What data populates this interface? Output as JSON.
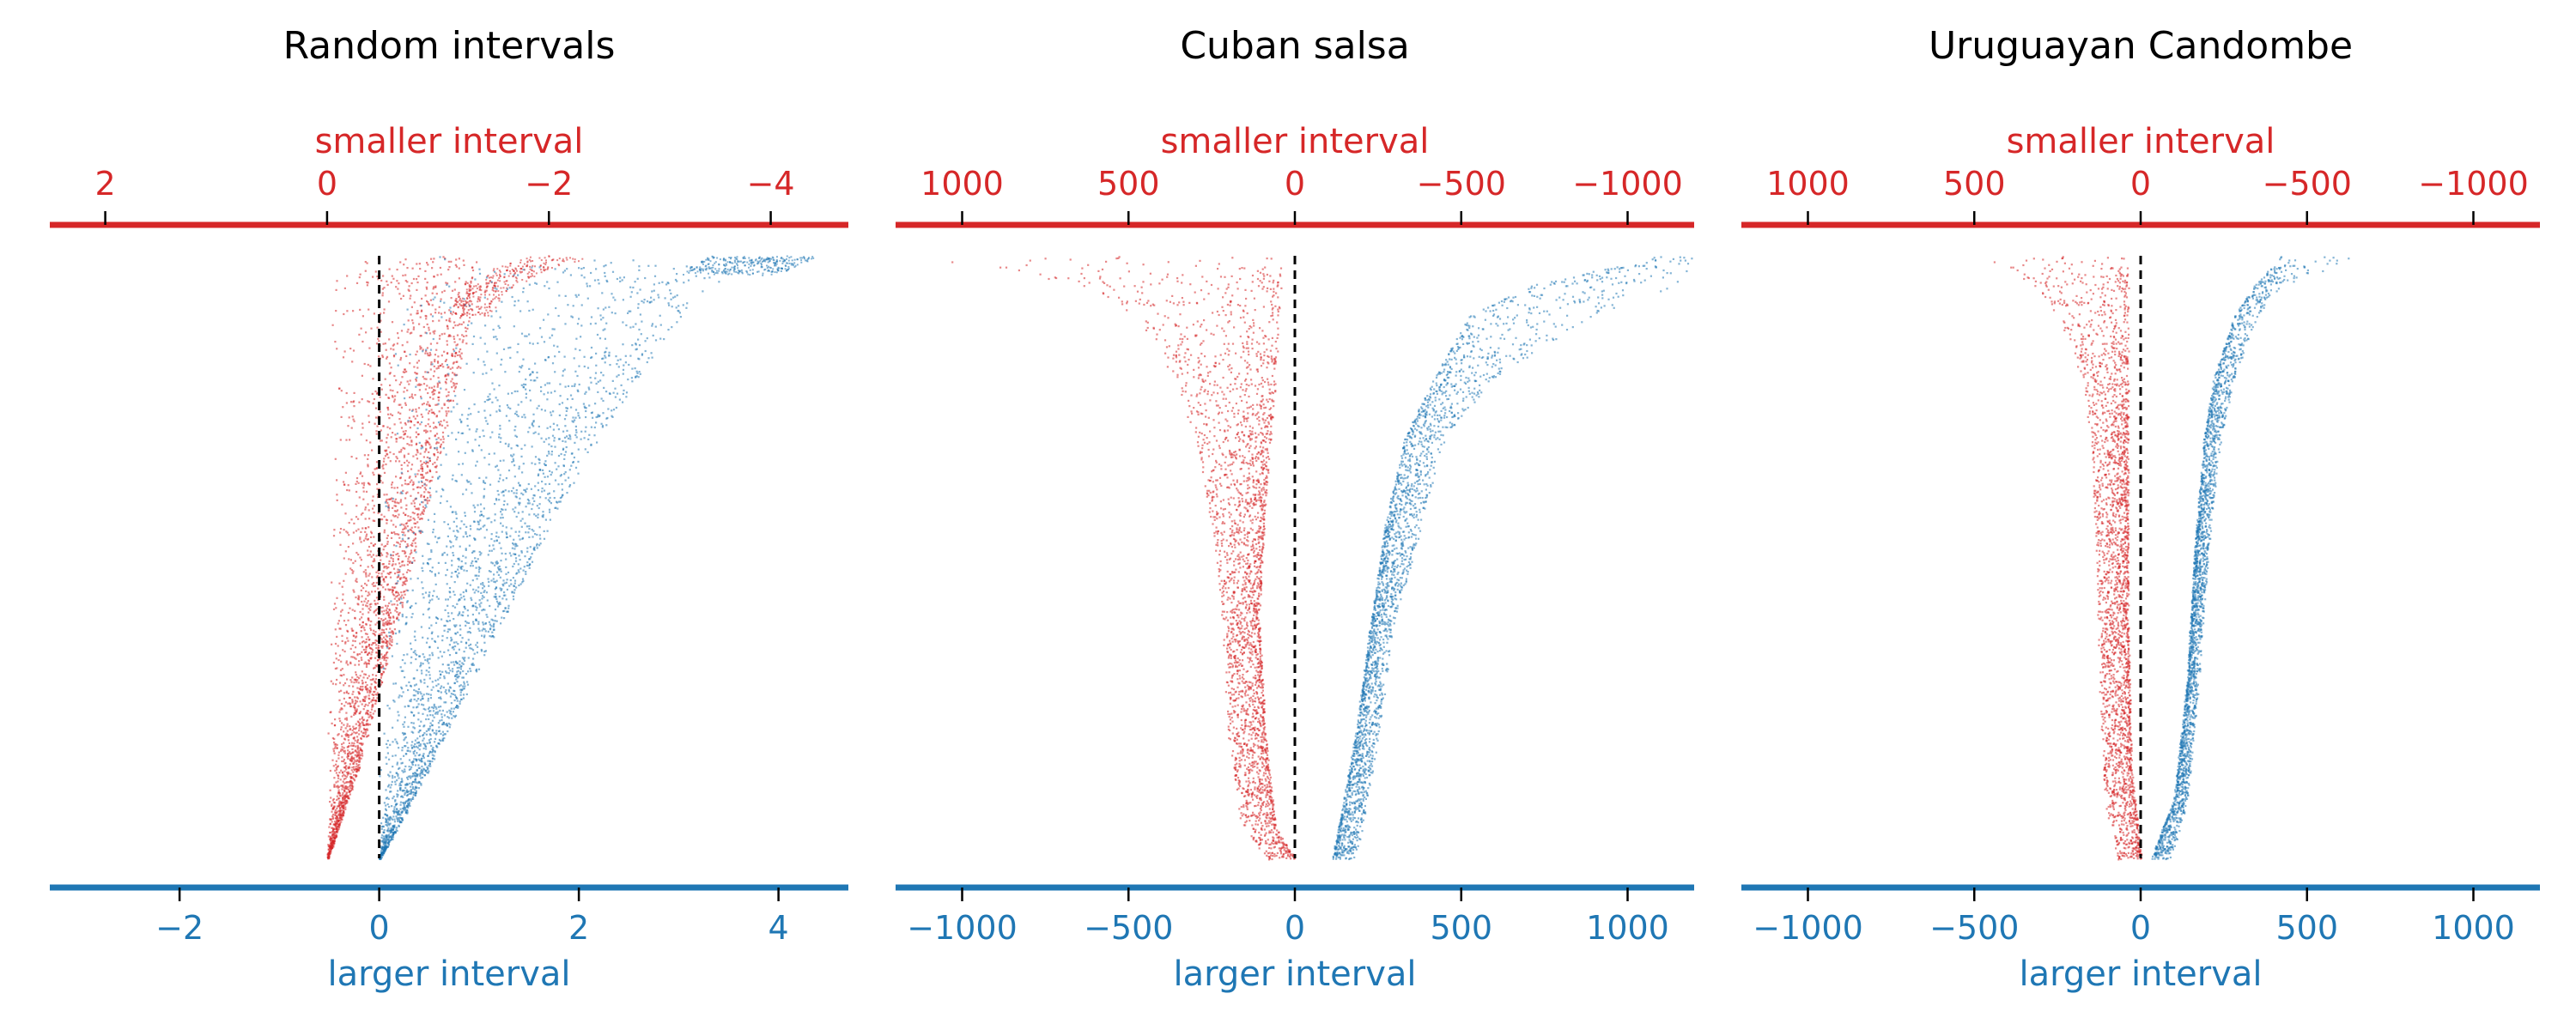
{
  "colors": {
    "smaller": "#d62728",
    "larger": "#1f77b4",
    "zero_line": "#000000",
    "title": "#000000"
  },
  "chart_data": [
    {
      "type": "scatter",
      "title": "Random intervals",
      "top_axis": {
        "label": "smaller interval",
        "direction": "reversed",
        "range": [
          2.5,
          -4.7
        ],
        "ticks": [
          2,
          0,
          -2,
          -4
        ],
        "tick_labels": [
          "2",
          "0",
          "−2",
          "−4"
        ]
      },
      "bottom_axis": {
        "label": "larger interval",
        "range": [
          -3.3,
          4.7
        ],
        "ticks": [
          -2,
          0,
          2,
          4
        ],
        "tick_labels": [
          "−2",
          "0",
          "2",
          "4"
        ]
      },
      "zero_line": "dashed",
      "series": [
        {
          "axis": "top",
          "color": "smaller",
          "envelope": [
            [
              0.0,
              -1.35
            ],
            [
              0.05,
              -1.35
            ],
            [
              0.15,
              -1.25
            ],
            [
              0.3,
              -1.05
            ],
            [
              0.5,
              -0.78
            ],
            [
              0.7,
              -0.5
            ],
            [
              0.85,
              -0.28
            ],
            [
              0.95,
              -0.1
            ],
            [
              1.0,
              0
            ]
          ],
          "tail": [
            [
              0.0,
              -2.4
            ],
            [
              0.02,
              -2.0
            ],
            [
              0.06,
              -1.6
            ],
            [
              0.1,
              -1.45
            ]
          ]
        },
        {
          "axis": "bottom",
          "color": "larger",
          "envelope": [
            [
              0.0,
              4.0
            ],
            [
              0.05,
              3.3
            ],
            [
              0.15,
              2.8
            ],
            [
              0.3,
              2.2
            ],
            [
              0.5,
              1.55
            ],
            [
              0.7,
              0.95
            ],
            [
              0.85,
              0.5
            ],
            [
              0.95,
              0.18
            ],
            [
              1.0,
              0
            ]
          ],
          "tail": [
            [
              0.0,
              4.4
            ],
            [
              0.03,
              4.0
            ]
          ]
        }
      ]
    },
    {
      "type": "scatter",
      "title": "Cuban salsa",
      "top_axis": {
        "label": "smaller interval",
        "direction": "reversed",
        "range": [
          1200,
          -1200
        ],
        "ticks": [
          1000,
          500,
          0,
          -500,
          -1000
        ],
        "tick_labels": [
          "1000",
          "500",
          "0",
          "−500",
          "−1000"
        ]
      },
      "bottom_axis": {
        "label": "larger interval",
        "range": [
          -1200,
          1200
        ],
        "ticks": [
          -1000,
          -500,
          0,
          500,
          1000
        ],
        "tick_labels": [
          "−1000",
          "−500",
          "0",
          "500",
          "1000"
        ]
      },
      "zero_line": "dashed",
      "series": [
        {
          "axis": "top",
          "color": "smaller",
          "inner": [
            [
              0.0,
              40
            ],
            [
              0.2,
              60
            ],
            [
              0.4,
              90
            ],
            [
              0.6,
              110
            ],
            [
              0.8,
              90
            ],
            [
              0.95,
              60
            ],
            [
              1.0,
              0
            ]
          ],
          "outer": [
            [
              0.0,
              1150
            ],
            [
              0.05,
              650
            ],
            [
              0.1,
              480
            ],
            [
              0.2,
              370
            ],
            [
              0.3,
              300
            ],
            [
              0.45,
              250
            ],
            [
              0.6,
              220
            ],
            [
              0.8,
              200
            ],
            [
              0.95,
              160
            ],
            [
              1.0,
              80
            ]
          ]
        },
        {
          "axis": "bottom",
          "color": "larger",
          "inner": [
            [
              0.0,
              1100
            ],
            [
              0.05,
              700
            ],
            [
              0.1,
              520
            ],
            [
              0.2,
              420
            ],
            [
              0.3,
              330
            ],
            [
              0.45,
              270
            ],
            [
              0.6,
              230
            ],
            [
              0.8,
              180
            ],
            [
              0.95,
              130
            ],
            [
              1.0,
              110
            ]
          ],
          "outer": [
            [
              0.0,
              1200
            ],
            [
              0.05,
              1150
            ],
            [
              0.1,
              900
            ],
            [
              0.2,
              600
            ],
            [
              0.3,
              450
            ],
            [
              0.45,
              380
            ],
            [
              0.6,
              300
            ],
            [
              0.8,
              250
            ],
            [
              0.95,
              200
            ],
            [
              1.0,
              180
            ]
          ]
        }
      ]
    },
    {
      "type": "scatter",
      "title": "Uruguayan Candombe",
      "top_axis": {
        "label": "smaller interval",
        "direction": "reversed",
        "range": [
          1200,
          -1200
        ],
        "ticks": [
          1000,
          500,
          0,
          -500,
          -1000
        ],
        "tick_labels": [
          "1000",
          "500",
          "0",
          "−500",
          "−1000"
        ]
      },
      "bottom_axis": {
        "label": "larger interval",
        "range": [
          -1200,
          1200
        ],
        "ticks": [
          -1000,
          -500,
          0,
          500,
          1000
        ],
        "tick_labels": [
          "−1000",
          "−500",
          "0",
          "500",
          "1000"
        ]
      },
      "zero_line": "dashed",
      "series": [
        {
          "axis": "top",
          "color": "smaller",
          "inner": [
            [
              0.0,
              40
            ],
            [
              0.1,
              40
            ],
            [
              0.3,
              40
            ],
            [
              0.6,
              40
            ],
            [
              0.85,
              30
            ],
            [
              1.0,
              0
            ]
          ],
          "outer": [
            [
              0.0,
              480
            ],
            [
              0.05,
              330
            ],
            [
              0.1,
              250
            ],
            [
              0.2,
              180
            ],
            [
              0.3,
              150
            ],
            [
              0.5,
              135
            ],
            [
              0.7,
              125
            ],
            [
              0.9,
              110
            ],
            [
              1.0,
              70
            ]
          ]
        },
        {
          "axis": "bottom",
          "color": "larger",
          "inner": [
            [
              0.0,
              420
            ],
            [
              0.05,
              340
            ],
            [
              0.1,
              280
            ],
            [
              0.2,
              220
            ],
            [
              0.3,
              190
            ],
            [
              0.5,
              160
            ],
            [
              0.7,
              140
            ],
            [
              0.9,
              100
            ],
            [
              1.0,
              30
            ]
          ],
          "outer": [
            [
              0.0,
              650
            ],
            [
              0.05,
              420
            ],
            [
              0.1,
              350
            ],
            [
              0.2,
              280
            ],
            [
              0.3,
              240
            ],
            [
              0.5,
              200
            ],
            [
              0.7,
              175
            ],
            [
              0.9,
              140
            ],
            [
              1.0,
              90
            ]
          ]
        }
      ]
    }
  ]
}
